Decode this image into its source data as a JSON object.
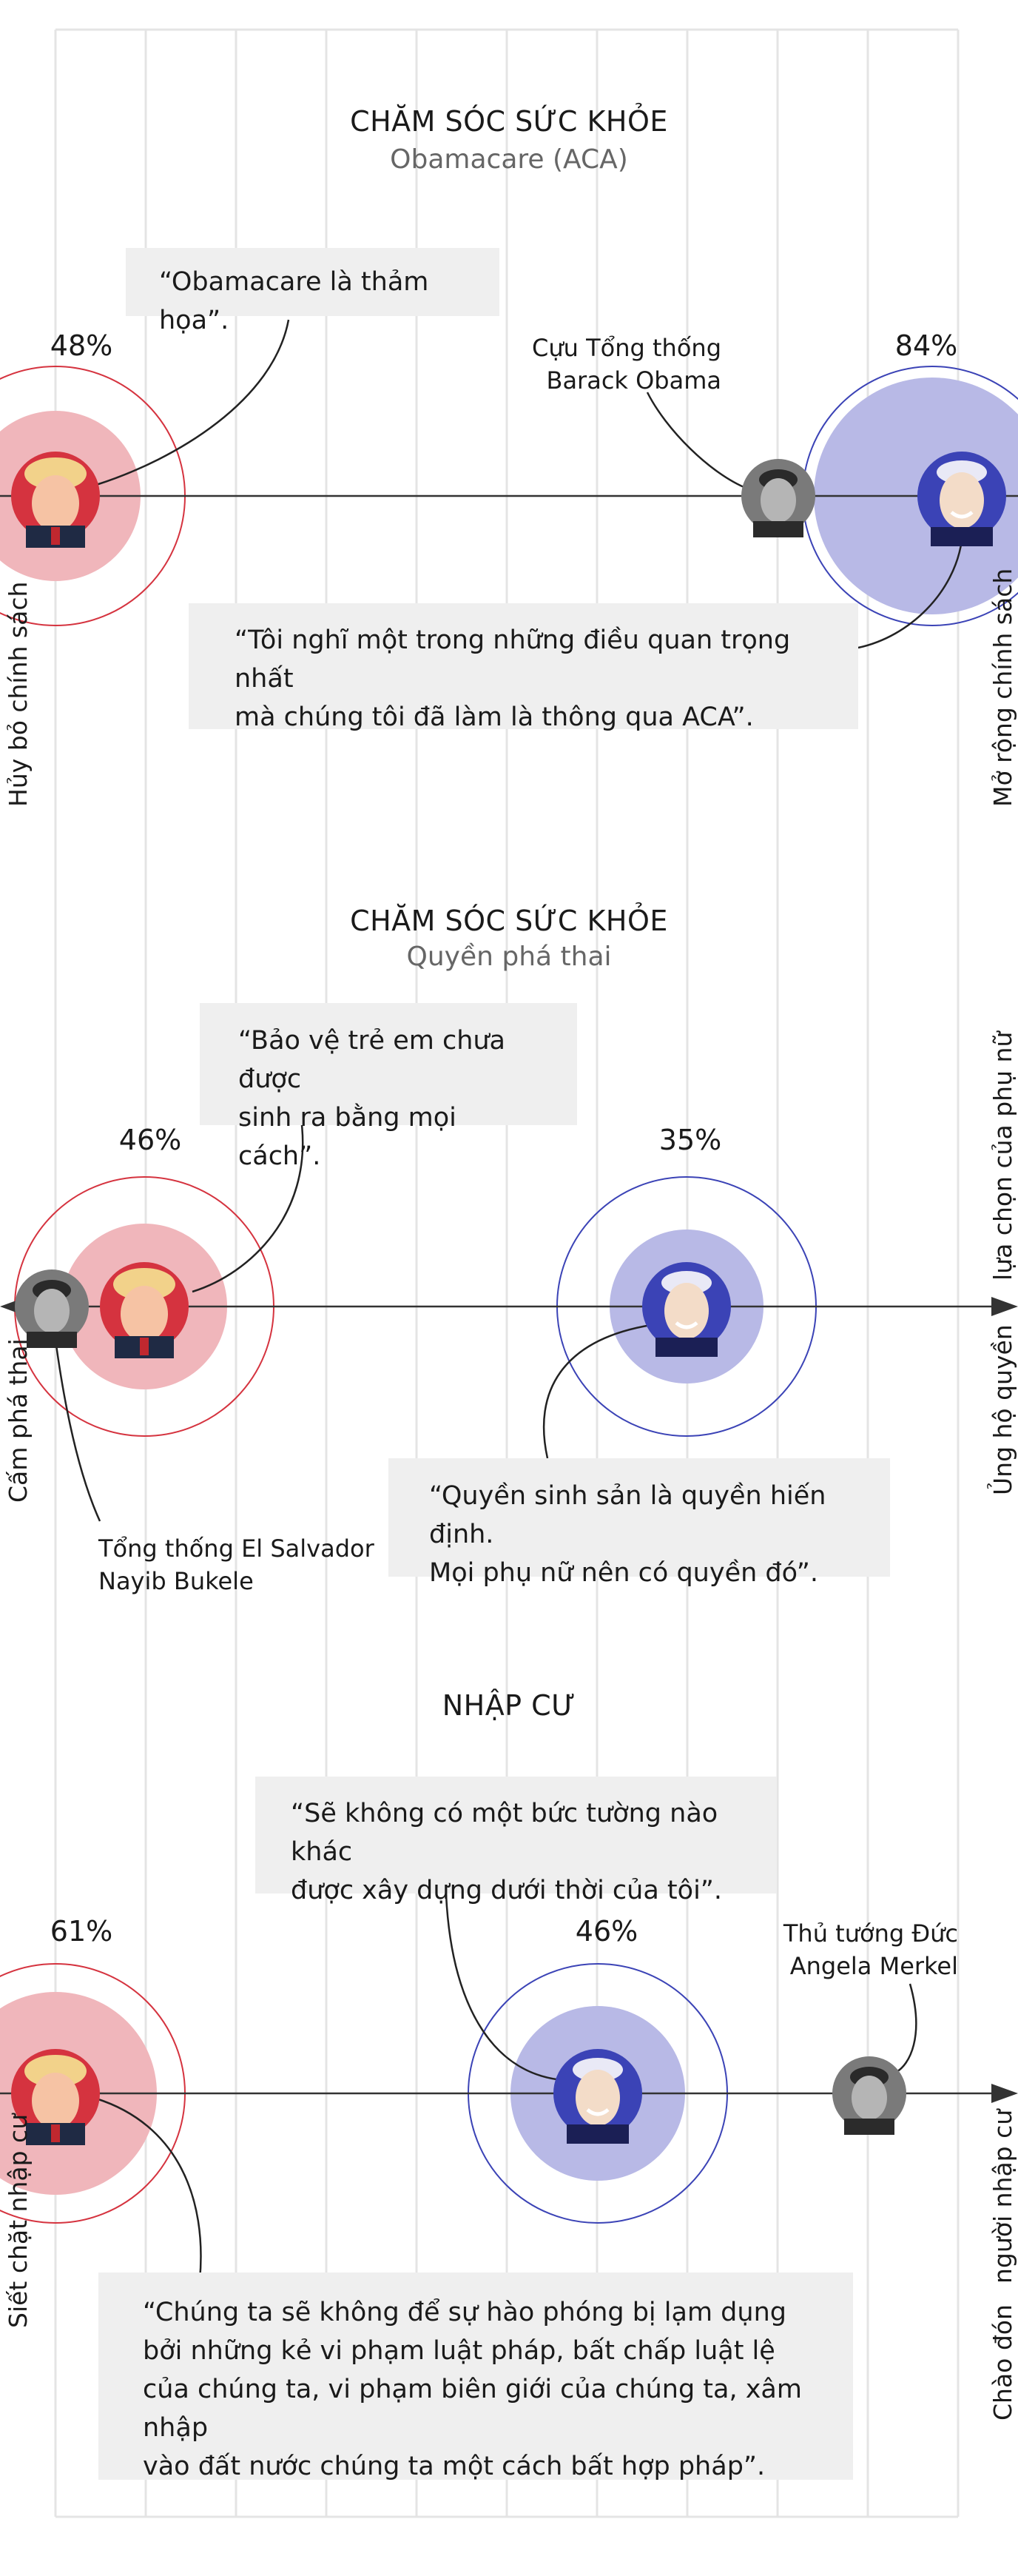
{
  "colors": {
    "red": "#d5333f",
    "red_light": "#f0b6bb",
    "blue": "#3b43b6",
    "blue_light": "#b8b9e6"
  },
  "sections": [
    {
      "title": "CHĂM SÓC SỨC KHỎE",
      "subtitle": "Obamacare (ACA)",
      "axis_left": "Hủy bỏ chính sách",
      "axis_right": "Mở rộng chính sách",
      "trump": {
        "percent": "48%",
        "value": 48,
        "quote": "“Obamacare là thảm họa”.",
        "icon": "trump-portrait-icon"
      },
      "biden": {
        "percent": "84%",
        "value": 84,
        "quote_lines": [
          "“Tôi nghĩ một trong những điều quan trọng nhất",
          "mà chúng tôi đã làm là thông qua ACA”."
        ],
        "icon": "biden-portrait-icon"
      },
      "other": {
        "name_lines": [
          "Cựu Tổng thống",
          "Barack Obama"
        ],
        "icon": "obama-portrait-icon"
      }
    },
    {
      "title": "CHĂM SÓC SỨC KHỎE",
      "subtitle": "Quyền phá thai",
      "axis_left": "Cấm phá thai",
      "axis_right_lines": [
        "Ủng hộ quyền",
        "lựa chọn của phụ nữ"
      ],
      "trump": {
        "percent": "46%",
        "value": 46,
        "quote_lines": [
          "“Bảo vệ trẻ em chưa được",
          "sinh ra bằng mọi cách”."
        ],
        "icon": "trump-portrait-icon"
      },
      "biden": {
        "percent": "35%",
        "value": 35,
        "quote_lines": [
          "“Quyền sinh sản là quyền hiến định.",
          "Mọi phụ nữ nên có quyền đó”."
        ],
        "icon": "biden-portrait-icon"
      },
      "other": {
        "name_lines": [
          "Tổng thống El Salvador",
          "Nayib Bukele"
        ],
        "icon": "bukele-portrait-icon"
      }
    },
    {
      "title": "NHẬP CƯ",
      "axis_left": "Siết chặt nhập cư",
      "axis_right_lines": [
        "Chào đón",
        "người nhập cư"
      ],
      "trump": {
        "percent": "61%",
        "value": 61,
        "quote_lines": [
          "“Chúng ta sẽ không để sự hào phóng bị lạm dụng",
          "bởi những kẻ vi phạm luật pháp, bất chấp luật lệ",
          "của chúng ta, vi phạm biên giới của chúng ta, xâm nhập",
          "vào đất nước chúng ta một cách bất hợp pháp”."
        ],
        "icon": "trump-portrait-icon"
      },
      "biden": {
        "percent": "46%",
        "value": 46,
        "quote_lines": [
          "“Sẽ không có một bức tường nào khác",
          "được xây dựng dưới thời của tôi”."
        ],
        "icon": "biden-portrait-icon"
      },
      "other": {
        "name_lines": [
          "Thủ tướng Đức",
          "Angela Merkel"
        ],
        "icon": "merkel-portrait-icon"
      }
    }
  ]
}
